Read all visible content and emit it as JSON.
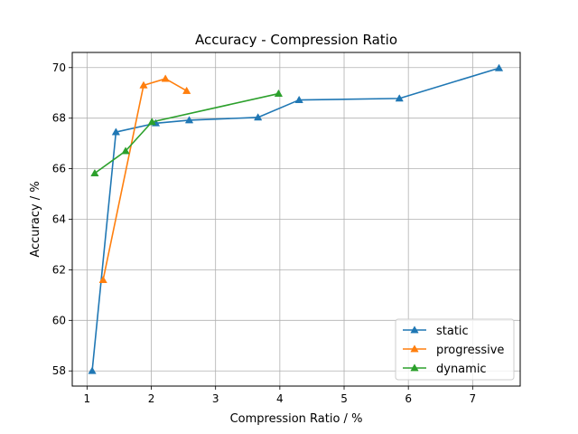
{
  "chart_data": {
    "type": "line",
    "title": "Accuracy - Compression Ratio",
    "xlabel": "Compression Ratio / %",
    "ylabel": "Accuracy / %",
    "xlim": [
      0.77,
      7.74
    ],
    "ylim": [
      57.4,
      70.6
    ],
    "xticks": [
      1,
      2,
      3,
      4,
      5,
      6,
      7
    ],
    "yticks": [
      58,
      60,
      62,
      64,
      66,
      68,
      70
    ],
    "grid": true,
    "marker": "triangle-up",
    "legend_position": "lower-right",
    "series": [
      {
        "name": "static",
        "color": "#1f77b4",
        "x": [
          1.08,
          1.45,
          2.07,
          2.59,
          3.66,
          4.3,
          5.86,
          7.41
        ],
        "y": [
          58.0,
          67.45,
          67.8,
          67.92,
          68.03,
          68.72,
          68.78,
          69.98
        ]
      },
      {
        "name": "progressive",
        "color": "#ff7f0e",
        "x": [
          1.25,
          1.88,
          2.22,
          2.55
        ],
        "y": [
          61.6,
          69.3,
          69.56,
          69.08
        ]
      },
      {
        "name": "dynamic",
        "color": "#2ca02c",
        "x": [
          1.12,
          1.6,
          2.01,
          3.98
        ],
        "y": [
          65.82,
          66.7,
          67.85,
          68.97
        ]
      }
    ]
  }
}
